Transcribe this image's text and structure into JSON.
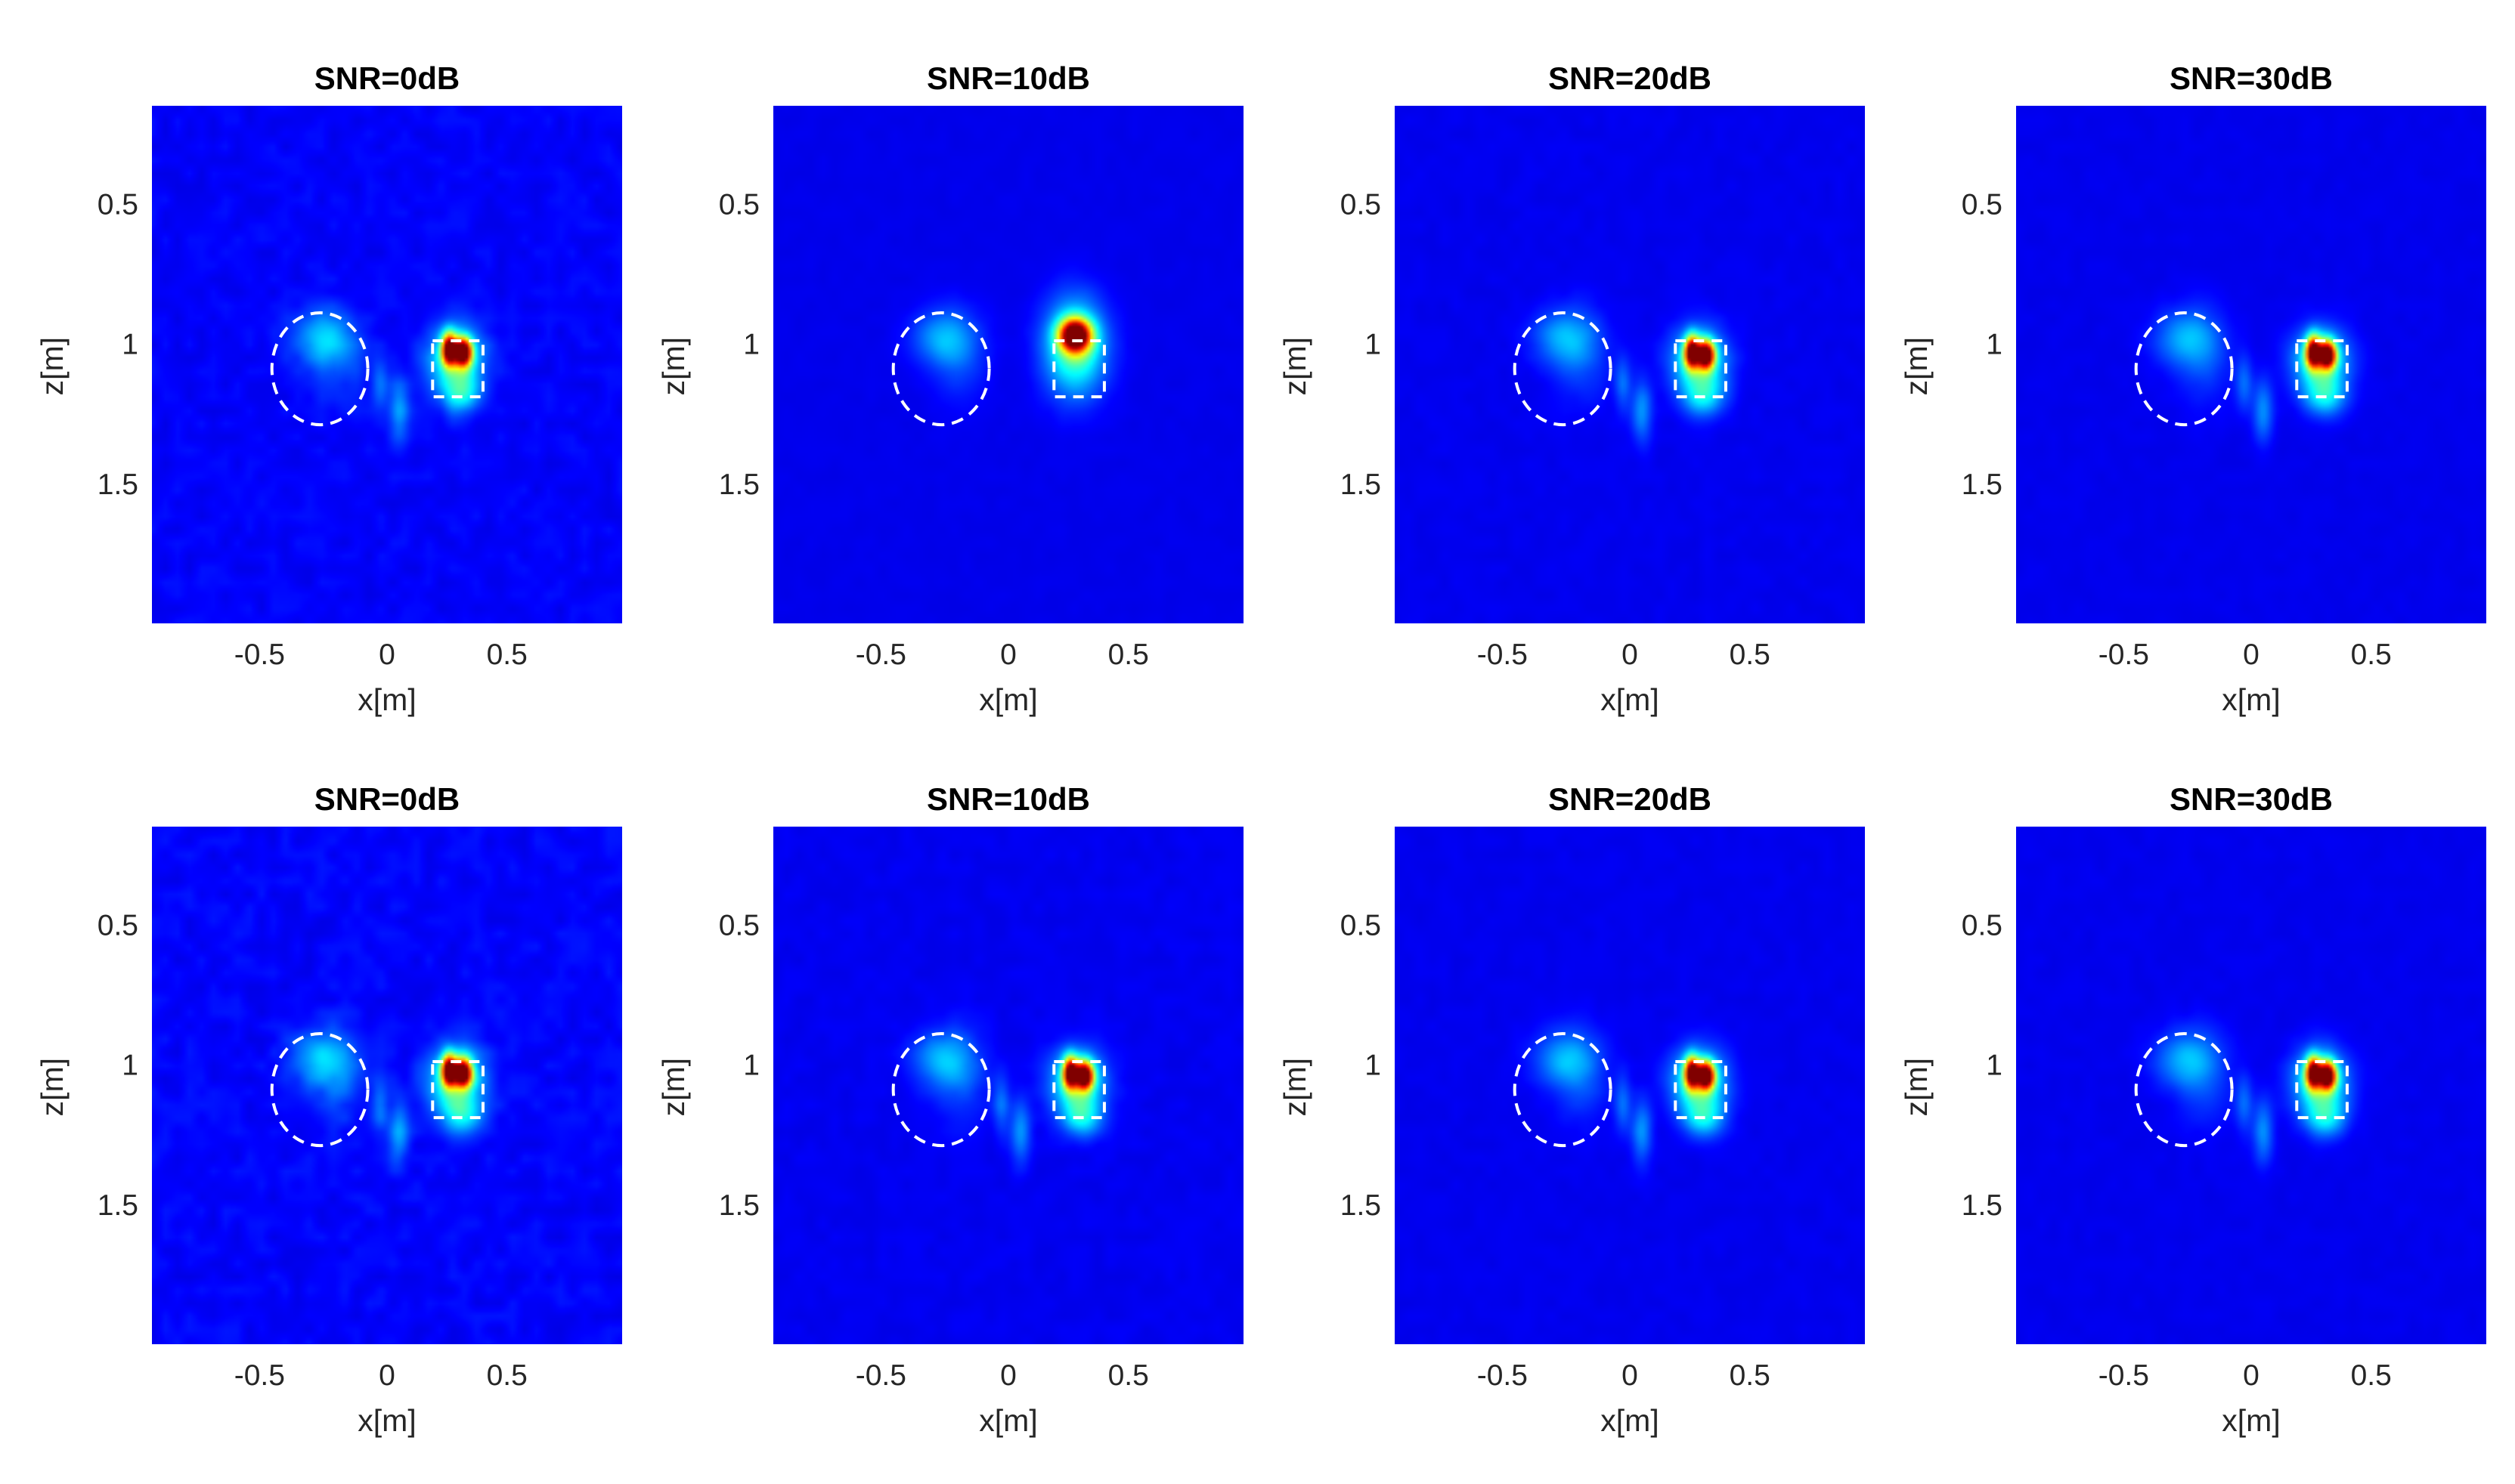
{
  "figure": {
    "colormap": "jet",
    "background_color": "#ffffff",
    "shape_color": "#ffffff"
  },
  "chart_data": [
    {
      "type": "heatmap",
      "row": 1,
      "title": "SNR=0dB",
      "xlabel": "x[m]",
      "ylabel": "z[m]",
      "xlim": [
        -0.98,
        0.98
      ],
      "ylim": [
        0.15,
        2.0
      ],
      "y_reversed": true,
      "xticks": [
        "-0.5",
        "0",
        "0.5"
      ],
      "yticks": [
        "0.5",
        "1",
        "1.5"
      ],
      "peak": [
        0.29,
        1.01
      ],
      "noise_level": 0.35
    },
    {
      "type": "heatmap",
      "row": 1,
      "title": "SNR=10dB",
      "xlabel": "x[m]",
      "ylabel": "z[m]",
      "xlim": [
        -0.98,
        0.98
      ],
      "ylim": [
        0.15,
        2.0
      ],
      "y_reversed": true,
      "xticks": [
        "-0.5",
        "0",
        "0.5"
      ],
      "yticks": [
        "0.5",
        "1",
        "1.5"
      ],
      "peak": [
        0.28,
        0.97
      ],
      "noise_level": 0.1
    },
    {
      "type": "heatmap",
      "row": 1,
      "title": "SNR=20dB",
      "xlabel": "x[m]",
      "ylabel": "z[m]",
      "xlim": [
        -0.98,
        0.98
      ],
      "ylim": [
        0.15,
        2.0
      ],
      "y_reversed": true,
      "xticks": [
        "-0.5",
        "0",
        "0.5"
      ],
      "yticks": [
        "0.5",
        "1",
        "1.5"
      ],
      "peak": [
        0.29,
        1.02
      ],
      "noise_level": 0.15
    },
    {
      "type": "heatmap",
      "row": 1,
      "title": "SNR=30dB",
      "xlabel": "x[m]",
      "ylabel": "z[m]",
      "xlim": [
        -0.98,
        0.98
      ],
      "ylim": [
        0.15,
        2.0
      ],
      "y_reversed": true,
      "xticks": [
        "-0.5",
        "0",
        "0.5"
      ],
      "yticks": [
        "0.5",
        "1",
        "1.5"
      ],
      "peak": [
        0.29,
        1.02
      ],
      "noise_level": 0.12
    },
    {
      "type": "heatmap",
      "row": 2,
      "title": "SNR=0dB",
      "xlabel": "x[m]",
      "ylabel": "z[m]",
      "xlim": [
        -0.98,
        0.98
      ],
      "ylim": [
        0.15,
        2.0
      ],
      "y_reversed": true,
      "xticks": [
        "-0.5",
        "0",
        "0.5"
      ],
      "yticks": [
        "0.5",
        "1",
        "1.5"
      ],
      "peak": [
        0.29,
        1.01
      ],
      "noise_level": 0.4
    },
    {
      "type": "heatmap",
      "row": 2,
      "title": "SNR=10dB",
      "xlabel": "x[m]",
      "ylabel": "z[m]",
      "xlim": [
        -0.98,
        0.98
      ],
      "ylim": [
        0.15,
        2.0
      ],
      "y_reversed": true,
      "xticks": [
        "-0.5",
        "0",
        "0.5"
      ],
      "yticks": [
        "0.5",
        "1",
        "1.5"
      ],
      "peak": [
        0.29,
        1.02
      ],
      "noise_level": 0.18
    },
    {
      "type": "heatmap",
      "row": 2,
      "title": "SNR=20dB",
      "xlabel": "x[m]",
      "ylabel": "z[m]",
      "xlim": [
        -0.98,
        0.98
      ],
      "ylim": [
        0.15,
        2.0
      ],
      "y_reversed": true,
      "xticks": [
        "-0.5",
        "0",
        "0.5"
      ],
      "yticks": [
        "0.5",
        "1",
        "1.5"
      ],
      "peak": [
        0.29,
        1.02
      ],
      "noise_level": 0.14
    },
    {
      "type": "heatmap",
      "row": 2,
      "title": "SNR=30dB",
      "xlabel": "x[m]",
      "ylabel": "z[m]",
      "xlim": [
        -0.98,
        0.98
      ],
      "ylim": [
        0.15,
        2.0
      ],
      "y_reversed": true,
      "xticks": [
        "-0.5",
        "0",
        "0.5"
      ],
      "yticks": [
        "0.5",
        "1",
        "1.5"
      ],
      "peak": [
        0.29,
        1.02
      ],
      "noise_level": 0.13
    }
  ]
}
